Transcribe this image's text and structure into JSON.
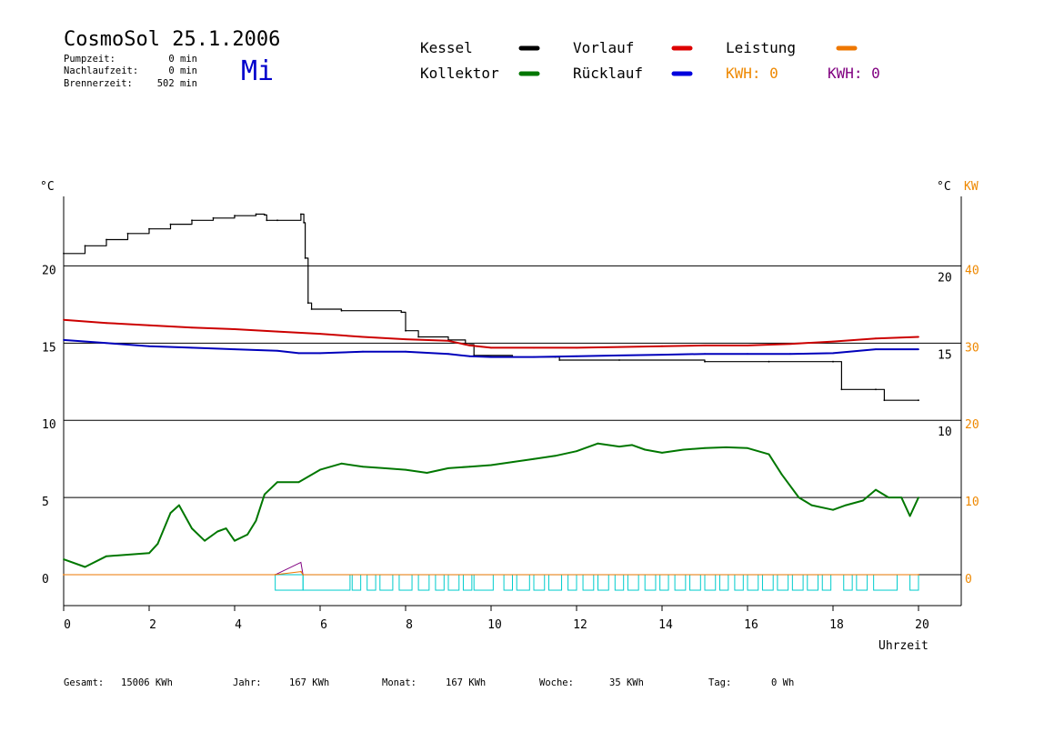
{
  "header": {
    "title": "CosmoSol 25.1.2006",
    "weekday": "Mi",
    "stats": [
      {
        "label": "Pumpzeit:",
        "value": "0 min"
      },
      {
        "label": "Nachlaufzeit:",
        "value": "0 min"
      },
      {
        "label": "Brennerzeit:",
        "value": "502 min"
      }
    ]
  },
  "legend": {
    "kessel": "Kessel",
    "kollektor": "Kollektor",
    "vorlauf": "Vorlauf",
    "ruecklauf": "Rücklauf",
    "leistung": "Leistung",
    "kwh_orange": "KWH: 0",
    "kwh_purple": "KWH: 0"
  },
  "axis_units": {
    "left": "°C",
    "right_temp": "°C",
    "right_power": "KW",
    "xlabel": "Uhrzeit"
  },
  "colors": {
    "kessel": "#000000",
    "kollektor": "#007700",
    "vorlauf": "#cc0000",
    "ruecklauf": "#0000bb",
    "leistung": "#ee7700",
    "kwh_purple": "#800080",
    "pump": "#00cccc",
    "weekday": "#0000cc"
  },
  "footer": [
    {
      "label": "Gesamt:",
      "value": "15006 KWh"
    },
    {
      "label": "Jahr:",
      "value": "167 KWh"
    },
    {
      "label": "Monat:",
      "value": "167 KWh"
    },
    {
      "label": "Woche:",
      "value": "35 KWh"
    },
    {
      "label": "Tag:",
      "value": "0 Wh"
    }
  ],
  "chart_data": {
    "type": "line",
    "title": "",
    "xlabel": "Uhrzeit",
    "ylabel": "°C",
    "xlim": [
      0,
      21
    ],
    "ylim": [
      -2,
      24.5
    ],
    "x_ticks": [
      0,
      2,
      4,
      6,
      8,
      10,
      12,
      14,
      16,
      18,
      20
    ],
    "y_ticks_left": [
      0,
      5,
      10,
      15,
      20
    ],
    "y_ticks_right_temp": [
      10,
      15,
      20
    ],
    "y_ticks_right_power": [
      0,
      10,
      20,
      30,
      40
    ],
    "grid": "horizontal",
    "series": [
      {
        "name": "Kessel",
        "points": [
          [
            0,
            20.8
          ],
          [
            0.5,
            21.3
          ],
          [
            1,
            21.7
          ],
          [
            1.5,
            22.1
          ],
          [
            2,
            22.4
          ],
          [
            2.5,
            22.7
          ],
          [
            3,
            22.95
          ],
          [
            3.5,
            23.1
          ],
          [
            4,
            23.25
          ],
          [
            4.5,
            23.35
          ],
          [
            4.7,
            23.3
          ],
          [
            4.75,
            22.95
          ],
          [
            5,
            22.95
          ],
          [
            5.55,
            23.35
          ],
          [
            5.62,
            22.8
          ],
          [
            5.65,
            20.5
          ],
          [
            5.72,
            17.6
          ],
          [
            5.8,
            17.2
          ],
          [
            6.5,
            17.1
          ],
          [
            7.9,
            17.0
          ],
          [
            8,
            15.8
          ],
          [
            8.3,
            15.4
          ],
          [
            9,
            15.2
          ],
          [
            9.4,
            14.9
          ],
          [
            9.6,
            14.2
          ],
          [
            10.5,
            14.1
          ],
          [
            11.5,
            14.1
          ],
          [
            11.6,
            13.9
          ],
          [
            13,
            13.9
          ],
          [
            15,
            13.8
          ],
          [
            16.5,
            13.8
          ],
          [
            18,
            13.8
          ],
          [
            18.2,
            12.0
          ],
          [
            19,
            12.0
          ],
          [
            19.2,
            11.3
          ],
          [
            20,
            11.3
          ]
        ]
      },
      {
        "name": "Vorlauf",
        "points": [
          [
            0,
            16.5
          ],
          [
            1,
            16.3
          ],
          [
            2,
            16.15
          ],
          [
            3,
            16.0
          ],
          [
            4,
            15.9
          ],
          [
            5,
            15.75
          ],
          [
            6,
            15.6
          ],
          [
            7,
            15.4
          ],
          [
            8,
            15.25
          ],
          [
            9,
            15.15
          ],
          [
            9.5,
            14.85
          ],
          [
            10,
            14.7
          ],
          [
            11,
            14.7
          ],
          [
            12,
            14.7
          ],
          [
            13,
            14.75
          ],
          [
            14,
            14.8
          ],
          [
            15,
            14.85
          ],
          [
            16,
            14.85
          ],
          [
            17,
            14.95
          ],
          [
            18,
            15.1
          ],
          [
            19,
            15.3
          ],
          [
            20,
            15.4
          ]
        ]
      },
      {
        "name": "Rücklauf",
        "points": [
          [
            0,
            15.2
          ],
          [
            1,
            15.0
          ],
          [
            2,
            14.8
          ],
          [
            3,
            14.7
          ],
          [
            4,
            14.6
          ],
          [
            5,
            14.5
          ],
          [
            5.5,
            14.35
          ],
          [
            6,
            14.35
          ],
          [
            7,
            14.45
          ],
          [
            8,
            14.45
          ],
          [
            9,
            14.3
          ],
          [
            9.5,
            14.15
          ],
          [
            10,
            14.1
          ],
          [
            11,
            14.1
          ],
          [
            12,
            14.15
          ],
          [
            13,
            14.2
          ],
          [
            14,
            14.25
          ],
          [
            15,
            14.3
          ],
          [
            16,
            14.3
          ],
          [
            17,
            14.3
          ],
          [
            18,
            14.35
          ],
          [
            19,
            14.6
          ],
          [
            20,
            14.6
          ]
        ]
      },
      {
        "name": "Kollektor",
        "points": [
          [
            0,
            1.0
          ],
          [
            0.5,
            0.5
          ],
          [
            1,
            1.2
          ],
          [
            1.5,
            1.3
          ],
          [
            2,
            1.4
          ],
          [
            2.2,
            2.0
          ],
          [
            2.5,
            4.0
          ],
          [
            2.7,
            4.5
          ],
          [
            3,
            3.0
          ],
          [
            3.3,
            2.2
          ],
          [
            3.6,
            2.8
          ],
          [
            3.8,
            3.0
          ],
          [
            4,
            2.2
          ],
          [
            4.3,
            2.6
          ],
          [
            4.5,
            3.5
          ],
          [
            4.7,
            5.2
          ],
          [
            5,
            6.0
          ],
          [
            5.5,
            6.0
          ],
          [
            6,
            6.8
          ],
          [
            6.5,
            7.2
          ],
          [
            7,
            7.0
          ],
          [
            7.5,
            6.9
          ],
          [
            8,
            6.8
          ],
          [
            8.5,
            6.6
          ],
          [
            9,
            6.9
          ],
          [
            9.5,
            7.0
          ],
          [
            10,
            7.1
          ],
          [
            10.5,
            7.3
          ],
          [
            11,
            7.5
          ],
          [
            11.5,
            7.7
          ],
          [
            12,
            8.0
          ],
          [
            12.5,
            8.5
          ],
          [
            13,
            8.3
          ],
          [
            13.3,
            8.4
          ],
          [
            13.6,
            8.1
          ],
          [
            14,
            7.9
          ],
          [
            14.5,
            8.1
          ],
          [
            15,
            8.2
          ],
          [
            15.5,
            8.25
          ],
          [
            16,
            8.2
          ],
          [
            16.5,
            7.8
          ],
          [
            16.8,
            6.5
          ],
          [
            17.2,
            5.0
          ],
          [
            17.5,
            4.5
          ],
          [
            18,
            4.2
          ],
          [
            18.3,
            4.5
          ],
          [
            18.7,
            4.8
          ],
          [
            19,
            5.5
          ],
          [
            19.3,
            5.0
          ],
          [
            19.6,
            5.0
          ],
          [
            19.8,
            3.8
          ],
          [
            20,
            5.0
          ]
        ]
      },
      {
        "name": "Leistung",
        "points": [
          [
            0,
            0
          ],
          [
            4.95,
            0
          ],
          [
            5.55,
            0.2
          ],
          [
            5.6,
            0
          ],
          [
            20,
            0
          ]
        ]
      }
    ],
    "pump_cycles_hours": [
      [
        4.95,
        5.6
      ],
      [
        5.6,
        6.7
      ],
      [
        6.75,
        6.95
      ],
      [
        7.1,
        7.3
      ],
      [
        7.4,
        7.7
      ],
      [
        7.85,
        8.15
      ],
      [
        8.3,
        8.55
      ],
      [
        8.7,
        8.9
      ],
      [
        9.0,
        9.25
      ],
      [
        9.35,
        9.55
      ],
      [
        9.6,
        10.05
      ],
      [
        10.3,
        10.5
      ],
      [
        10.6,
        10.9
      ],
      [
        11.0,
        11.25
      ],
      [
        11.35,
        11.65
      ],
      [
        11.8,
        12.0
      ],
      [
        12.15,
        12.4
      ],
      [
        12.5,
        12.75
      ],
      [
        12.9,
        13.1
      ],
      [
        13.2,
        13.45
      ],
      [
        13.6,
        13.85
      ],
      [
        13.95,
        14.15
      ],
      [
        14.3,
        14.55
      ],
      [
        14.65,
        14.9
      ],
      [
        15.0,
        15.25
      ],
      [
        15.35,
        15.55
      ],
      [
        15.7,
        15.9
      ],
      [
        16.0,
        16.25
      ],
      [
        16.35,
        16.6
      ],
      [
        16.7,
        16.95
      ],
      [
        17.05,
        17.3
      ],
      [
        17.4,
        17.65
      ],
      [
        17.75,
        17.95
      ],
      [
        18.25,
        18.45
      ],
      [
        18.55,
        18.8
      ],
      [
        18.95,
        19.5
      ],
      [
        19.8,
        20.0
      ]
    ]
  }
}
